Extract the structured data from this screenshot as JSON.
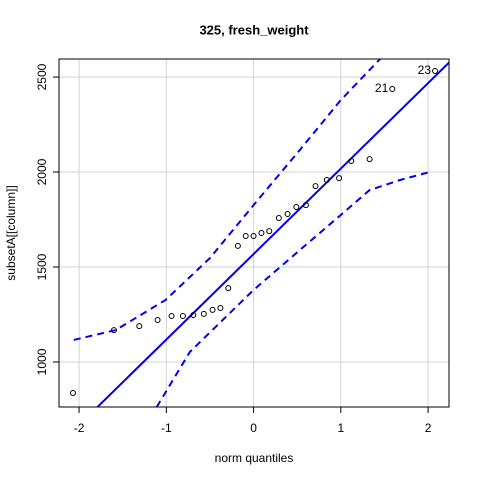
{
  "chart_data": {
    "type": "scatter",
    "title": "325, fresh_weight",
    "x_label": "norm quantiles",
    "y_label": "subsetA[[column]]",
    "x": [
      -2.07,
      -1.6,
      -1.31,
      -1.1,
      -0.94,
      -0.81,
      -0.69,
      -0.57,
      -0.47,
      -0.38,
      -0.29,
      -0.18,
      -0.09,
      0,
      0.09,
      0.18,
      0.29,
      0.39,
      0.49,
      0.6,
      0.71,
      0.84,
      0.98,
      1.12,
      1.33,
      1.59,
      2.08
    ],
    "values": [
      837,
      1168,
      1189,
      1221,
      1242,
      1242,
      1247,
      1253,
      1274,
      1284,
      1389,
      1611,
      1663,
      1663,
      1679,
      1689,
      1758,
      1779,
      1816,
      1826,
      1926,
      1958,
      1968,
      2058,
      2068,
      2437,
      2532
    ],
    "point_color": "#000000",
    "reference_line": {
      "intercept": 1568,
      "slope": 450,
      "color": "#0000ee"
    },
    "lines": [
      {
        "color": "#0000ee",
        "dashed": true,
        "x": [
          -2.06,
          -1.58,
          -1.01,
          -0.5,
          0,
          0.53,
          1,
          1.45
        ],
        "values": [
          1116,
          1168,
          1326,
          1547,
          1826,
          2116,
          2379,
          2595
        ]
      },
      {
        "color": "#0000ee",
        "dashed": true,
        "x": [
          -1.11,
          -0.73,
          0,
          0.53,
          1,
          1.33,
          1.68,
          2.02
        ],
        "values": [
          763,
          1053,
          1379,
          1589,
          1774,
          1905,
          1958,
          2000
        ]
      }
    ],
    "annotations": [
      {
        "text": "21",
        "x": 1.59,
        "y": 2437
      },
      {
        "text": "23",
        "x": 2.08,
        "y": 2532
      }
    ],
    "xlim": [
      -2.23,
      2.24
    ],
    "ylim": [
      763,
      2595
    ],
    "xticks": [
      -2,
      -1,
      0,
      1,
      2
    ],
    "yticks": [
      1000,
      1500,
      2000,
      2500
    ],
    "grid": true
  }
}
